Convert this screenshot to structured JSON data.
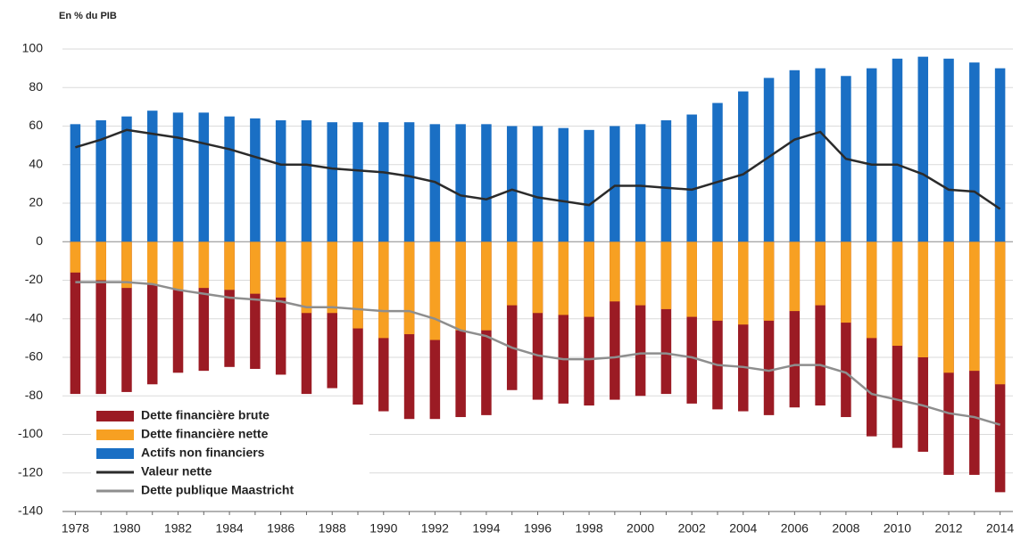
{
  "chart_data": {
    "type": "bar",
    "title": "En % du PIB",
    "categories": [
      "1978",
      null,
      "1980",
      null,
      "1982",
      null,
      "1984",
      null,
      "1986",
      null,
      "1988",
      null,
      "1990",
      null,
      "1992",
      null,
      "1994",
      null,
      "1996",
      null,
      "1998",
      null,
      "2000",
      null,
      "2002",
      null,
      "2004",
      null,
      "2006",
      null,
      "2008",
      null,
      "2010",
      null,
      "2012",
      null,
      "2014"
    ],
    "ylim": [
      -140,
      100
    ],
    "yticks": [
      -140,
      -120,
      -100,
      -80,
      -60,
      -40,
      -20,
      0,
      20,
      40,
      60,
      80,
      100
    ],
    "grid": true,
    "legend": "lower left",
    "series": [
      {
        "name": "Dette financière brute",
        "type": "bar",
        "color": "#9b1b24",
        "values": [
          -79,
          -79,
          -78,
          -74,
          -68,
          -67,
          -65,
          -66,
          -69,
          -79,
          -76,
          -87,
          -88,
          -92,
          -92,
          -91,
          -90,
          -77,
          -82,
          -84,
          -85,
          -82,
          -80,
          -79,
          -84,
          -87,
          -88,
          -90,
          -86,
          -85,
          -91,
          -101,
          -107,
          -109,
          -121,
          -121,
          -130
        ]
      },
      {
        "name": "Dette financière nette",
        "type": "bar",
        "color": "#f7a022",
        "values": [
          -16,
          -20,
          -24,
          -22,
          -25,
          -24,
          -25,
          -27,
          -29,
          -37,
          -37,
          -45,
          -50,
          -48,
          -51,
          -46,
          -46,
          -33,
          -37,
          -38,
          -39,
          -31,
          -33,
          -35,
          -39,
          -41,
          -43,
          -41,
          -36,
          -33,
          -42,
          -50,
          -54,
          -60,
          -68,
          -67,
          -74
        ]
      },
      {
        "name": "Actifs non financiers",
        "type": "bar",
        "color": "#1a6fc4",
        "values": [
          61,
          63,
          65,
          68,
          67,
          67,
          65,
          64,
          63,
          63,
          62,
          62,
          62,
          62,
          61,
          61,
          61,
          60,
          60,
          59,
          58,
          60,
          61,
          63,
          66,
          72,
          78,
          85,
          89,
          90,
          86,
          90,
          95,
          96,
          95,
          93,
          90
        ]
      },
      {
        "name": "Valeur nette",
        "type": "line",
        "color": "#2b2b2b",
        "values": [
          49,
          53,
          58,
          56,
          54,
          51,
          48,
          44,
          40,
          40,
          38,
          37,
          36,
          34,
          31,
          24,
          22,
          27,
          23,
          21,
          19,
          29,
          29,
          28,
          27,
          31,
          35,
          44,
          53,
          57,
          43,
          40,
          40,
          35,
          27,
          26,
          17
        ]
      },
      {
        "name": "Dette publique Maastricht",
        "type": "line",
        "color": "#8e8e8e",
        "values": [
          -21,
          -21,
          -21,
          -22,
          -25,
          -27,
          -29,
          -30,
          -31,
          -34,
          -34,
          -35,
          -36,
          -36,
          -40,
          -46,
          -49,
          -55,
          -59,
          -61,
          -61,
          -60,
          -58,
          -58,
          -60,
          -64,
          -65,
          -67,
          -64,
          -64,
          -68,
          -79,
          -82,
          -85,
          -89,
          -91,
          -95
        ]
      }
    ]
  }
}
